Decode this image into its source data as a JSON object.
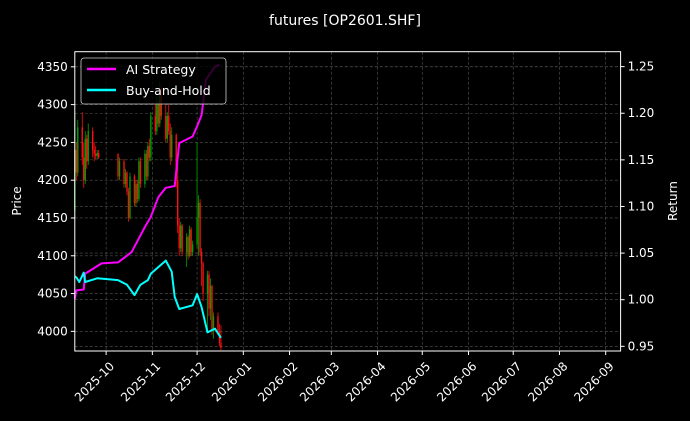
{
  "chart_data": {
    "type": "line",
    "title": "futures [OP2601.SHF]",
    "ylabel": "Price",
    "ylabel_right": "Return",
    "xlim": [
      "2025-09-10",
      "2026-09-11"
    ],
    "ylim": [
      3974,
      4370
    ],
    "ylim_right": [
      0.945,
      1.266
    ],
    "grid": true,
    "legend_placement": "top-left",
    "x_ticks": [
      "2025-10",
      "2025-11",
      "2025-12",
      "2026-01",
      "2026-02",
      "2026-03",
      "2026-04",
      "2026-05",
      "2026-06",
      "2026-07",
      "2026-08",
      "2026-09"
    ],
    "y_ticks": [
      4000,
      4050,
      4100,
      4150,
      4200,
      4250,
      4300,
      4350
    ],
    "y_ticks_right": [
      "0.95",
      "1.00",
      "1.05",
      "1.10",
      "1.15",
      "1.20",
      "1.25"
    ],
    "colors": {
      "up": "#00a000",
      "down": "#ff1010",
      "ai": "#ff00ff",
      "bh": "#00ffff",
      "grid": "#555555"
    },
    "candles_columns": [
      "date",
      "open",
      "high",
      "low",
      "close"
    ],
    "candles": [
      [
        "2025-09-10",
        4160,
        4290,
        4150,
        4240
      ],
      [
        "2025-09-11",
        4240,
        4250,
        4200,
        4210
      ],
      [
        "2025-09-12",
        4210,
        4280,
        4205,
        4270
      ],
      [
        "2025-09-15",
        4270,
        4290,
        4220,
        4230
      ],
      [
        "2025-09-16",
        4230,
        4250,
        4190,
        4200
      ],
      [
        "2025-09-17",
        4200,
        4265,
        4195,
        4255
      ],
      [
        "2025-09-18",
        4255,
        4260,
        4215,
        4225
      ],
      [
        "2025-09-19",
        4225,
        4275,
        4220,
        4265
      ],
      [
        "2025-09-22",
        4265,
        4270,
        4230,
        4240
      ],
      [
        "2025-09-23",
        4240,
        4250,
        4225,
        4235
      ],
      [
        "2025-09-24",
        4235,
        4245,
        4228,
        4232
      ],
      [
        "2025-09-25",
        4232,
        4240,
        4228,
        4236
      ],
      [
        "2025-09-26",
        4236,
        4240,
        4228,
        4230
      ],
      [
        "2025-10-09",
        4235,
        4235,
        4200,
        4205
      ],
      [
        "2025-10-10",
        4205,
        4230,
        4200,
        4225
      ],
      [
        "2025-10-13",
        4225,
        4228,
        4190,
        4195
      ],
      [
        "2025-10-14",
        4195,
        4215,
        4190,
        4210
      ],
      [
        "2025-10-15",
        4210,
        4212,
        4180,
        4185
      ],
      [
        "2025-10-16",
        4185,
        4190,
        4145,
        4150
      ],
      [
        "2025-10-17",
        4150,
        4210,
        4148,
        4205
      ],
      [
        "2025-10-20",
        4205,
        4208,
        4165,
        4170
      ],
      [
        "2025-10-21",
        4170,
        4200,
        4165,
        4195
      ],
      [
        "2025-10-22",
        4195,
        4200,
        4170,
        4175
      ],
      [
        "2025-10-23",
        4175,
        4230,
        4172,
        4225
      ],
      [
        "2025-10-24",
        4225,
        4230,
        4190,
        4195
      ],
      [
        "2025-10-27",
        4195,
        4240,
        4190,
        4235
      ],
      [
        "2025-10-28",
        4235,
        4240,
        4200,
        4205
      ],
      [
        "2025-10-29",
        4205,
        4250,
        4200,
        4245
      ],
      [
        "2025-10-30",
        4245,
        4255,
        4225,
        4230
      ],
      [
        "2025-10-31",
        4230,
        4290,
        4225,
        4285
      ],
      [
        "2025-11-03",
        4285,
        4300,
        4260,
        4265
      ],
      [
        "2025-11-04",
        4265,
        4310,
        4260,
        4300
      ],
      [
        "2025-11-05",
        4300,
        4305,
        4270,
        4275
      ],
      [
        "2025-11-06",
        4275,
        4330,
        4270,
        4320
      ],
      [
        "2025-11-07",
        4320,
        4325,
        4280,
        4285
      ],
      [
        "2025-11-10",
        4285,
        4300,
        4250,
        4255
      ],
      [
        "2025-11-11",
        4255,
        4290,
        4250,
        4285
      ],
      [
        "2025-11-12",
        4285,
        4300,
        4260,
        4265
      ],
      [
        "2025-11-13",
        4265,
        4275,
        4220,
        4230
      ],
      [
        "2025-11-14",
        4230,
        4270,
        4225,
        4260
      ],
      [
        "2025-11-17",
        4260,
        4262,
        4190,
        4200
      ],
      [
        "2025-11-18",
        4200,
        4230,
        4130,
        4140
      ],
      [
        "2025-11-19",
        4140,
        4150,
        4100,
        4110
      ],
      [
        "2025-11-20",
        4110,
        4145,
        4105,
        4140
      ],
      [
        "2025-11-21",
        4140,
        4142,
        4100,
        4105
      ],
      [
        "2025-11-24",
        4105,
        4130,
        4085,
        4125
      ],
      [
        "2025-11-25",
        4125,
        4128,
        4095,
        4100
      ],
      [
        "2025-11-26",
        4100,
        4140,
        4098,
        4135
      ],
      [
        "2025-11-27",
        4135,
        4138,
        4100,
        4105
      ],
      [
        "2025-11-28",
        4105,
        4120,
        4100,
        4115
      ],
      [
        "2025-12-01",
        4115,
        4250,
        4110,
        4150
      ],
      [
        "2025-12-02",
        4150,
        4180,
        4100,
        4170
      ],
      [
        "2025-12-03",
        4170,
        4175,
        4100,
        4105
      ],
      [
        "2025-12-04",
        4105,
        4110,
        4060,
        4090
      ],
      [
        "2025-12-05",
        4090,
        4092,
        4040,
        4050
      ],
      [
        "2025-12-08",
        4050,
        4080,
        4000,
        4075
      ],
      [
        "2025-12-09",
        4075,
        4080,
        4020,
        4030
      ],
      [
        "2025-12-10",
        4030,
        4070,
        4015,
        4060
      ],
      [
        "2025-12-11",
        4060,
        4062,
        3995,
        4000
      ],
      [
        "2025-12-12",
        4000,
        4025,
        3990,
        4020
      ],
      [
        "2025-12-15",
        4020,
        4025,
        3995,
        4000
      ],
      [
        "2025-12-16",
        4000,
        4010,
        3980,
        3985
      ],
      [
        "2025-12-17",
        3985,
        4008,
        3975,
        3978
      ]
    ],
    "series": [
      {
        "name": "AI Strategy",
        "axis": "right",
        "points": [
          [
            "2025-09-10",
            1.001
          ],
          [
            "2025-09-11",
            1.01
          ],
          [
            "2025-09-16",
            1.011
          ],
          [
            "2025-09-17",
            1.028
          ],
          [
            "2025-09-28",
            1.039
          ],
          [
            "2025-10-09",
            1.04
          ],
          [
            "2025-10-18",
            1.051
          ],
          [
            "2025-10-27",
            1.078
          ],
          [
            "2025-10-31",
            1.089
          ],
          [
            "2025-11-05",
            1.11
          ],
          [
            "2025-11-10",
            1.12
          ],
          [
            "2025-11-16",
            1.122
          ],
          [
            "2025-11-19",
            1.168
          ],
          [
            "2025-11-28",
            1.175
          ],
          [
            "2025-12-01",
            1.186
          ],
          [
            "2025-12-04",
            1.198
          ],
          [
            "2025-12-07",
            1.236
          ],
          [
            "2025-12-13",
            1.25
          ],
          [
            "2025-12-16",
            1.252
          ]
        ]
      },
      {
        "name": "Buy-and-Hold",
        "axis": "right",
        "points": [
          [
            "2025-09-10",
            1.025
          ],
          [
            "2025-09-11",
            1.024
          ],
          [
            "2025-09-13",
            1.019
          ],
          [
            "2025-09-16",
            1.029
          ],
          [
            "2025-09-17",
            1.019
          ],
          [
            "2025-09-25",
            1.023
          ],
          [
            "2025-10-09",
            1.021
          ],
          [
            "2025-10-15",
            1.016
          ],
          [
            "2025-10-20",
            1.005
          ],
          [
            "2025-10-24",
            1.016
          ],
          [
            "2025-10-29",
            1.021
          ],
          [
            "2025-10-31",
            1.028
          ],
          [
            "2025-11-05",
            1.035
          ],
          [
            "2025-11-10",
            1.042
          ],
          [
            "2025-11-14",
            1.03
          ],
          [
            "2025-11-16",
            1.003
          ],
          [
            "2025-11-19",
            0.99
          ],
          [
            "2025-11-28",
            0.994
          ],
          [
            "2025-12-01",
            1.006
          ],
          [
            "2025-12-04",
            0.992
          ],
          [
            "2025-12-08",
            0.965
          ],
          [
            "2025-12-13",
            0.969
          ],
          [
            "2025-12-17",
            0.959
          ]
        ]
      }
    ]
  }
}
